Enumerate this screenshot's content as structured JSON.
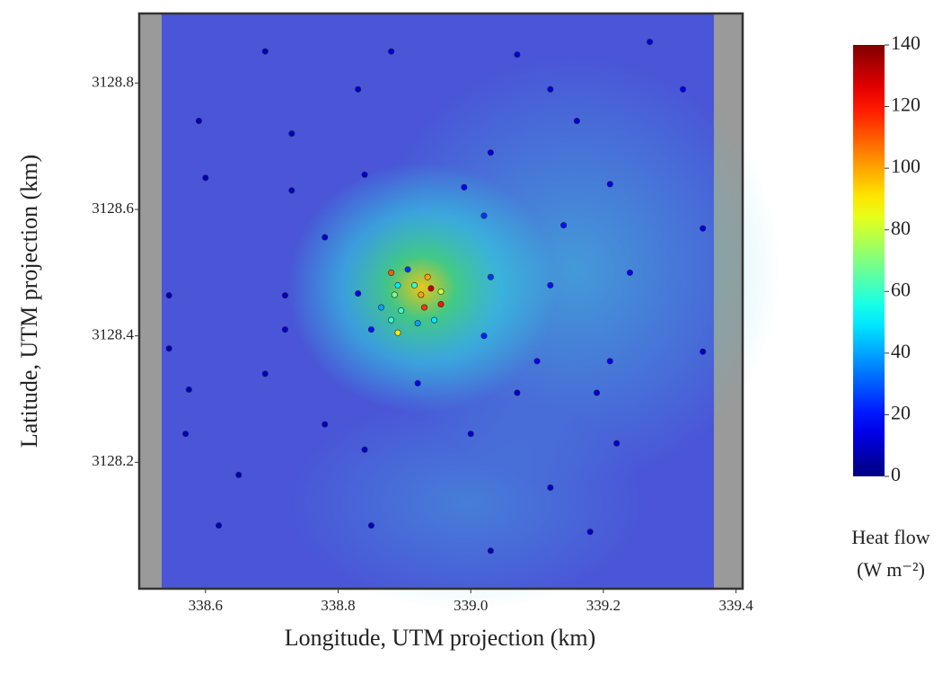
{
  "chart_data": {
    "type": "scatter",
    "x_label": "Longitude, UTM projection (km)",
    "y_label": "Latitude, UTM projection (km)",
    "colorbar_label": [
      "Heat flow",
      "(W m⁻²)"
    ],
    "colormap": "jet",
    "clim": [
      0,
      140
    ],
    "cticks": [
      0,
      20,
      40,
      60,
      80,
      100,
      120,
      140
    ],
    "xlim": [
      338.5,
      339.41
    ],
    "ylim": [
      3128.0,
      3128.91
    ],
    "xticks": [
      {
        "value": 338.6,
        "label": "338.6"
      },
      {
        "value": 338.8,
        "label": "338.8"
      },
      {
        "value": 339.0,
        "label": "339.0"
      },
      {
        "value": 339.2,
        "label": "339.2"
      },
      {
        "value": 339.4,
        "label": "339.4"
      }
    ],
    "yticks": [
      {
        "value": 3128.2,
        "label": "3128.2"
      },
      {
        "value": 3128.4,
        "label": "3128.4"
      },
      {
        "value": 3128.6,
        "label": "3128.6"
      },
      {
        "value": 3128.8,
        "label": "3128.8"
      }
    ],
    "x": [
      338.69,
      338.88,
      339.07,
      339.27,
      338.59,
      338.83,
      339.12,
      339.32,
      338.73,
      339.03,
      339.16,
      338.6,
      338.73,
      338.84,
      338.99,
      339.21,
      339.02,
      339.14,
      339.35,
      338.78,
      338.545,
      338.72,
      338.83,
      339.03,
      339.12,
      339.24,
      338.545,
      338.72,
      338.85,
      339.02,
      339.1,
      339.21,
      339.35,
      338.575,
      338.69,
      338.92,
      339.07,
      339.19,
      338.57,
      338.78,
      339.0,
      339.22,
      338.65,
      338.84,
      339.12,
      338.62,
      338.85,
      339.03,
      339.18,
      338.88,
      338.905,
      338.935,
      338.89,
      338.915,
      338.885,
      338.925,
      338.94,
      338.955,
      338.865,
      338.895,
      338.93,
      338.955,
      338.88,
      338.92,
      338.89,
      338.945
    ],
    "y": [
      3128.85,
      3128.85,
      3128.845,
      3128.865,
      3128.74,
      3128.79,
      3128.79,
      3128.79,
      3128.72,
      3128.69,
      3128.74,
      3128.65,
      3128.63,
      3128.655,
      3128.635,
      3128.64,
      3128.59,
      3128.575,
      3128.57,
      3128.556,
      3128.464,
      3128.464,
      3128.467,
      3128.493,
      3128.48,
      3128.5,
      3128.38,
      3128.41,
      3128.41,
      3128.4,
      3128.36,
      3128.36,
      3128.375,
      3128.315,
      3128.34,
      3128.325,
      3128.31,
      3128.31,
      3128.245,
      3128.26,
      3128.245,
      3128.23,
      3128.18,
      3128.22,
      3128.16,
      3128.1,
      3128.1,
      3128.06,
      3128.09,
      3128.5,
      3128.505,
      3128.493,
      3128.48,
      3128.48,
      3128.465,
      3128.465,
      3128.475,
      3128.47,
      3128.445,
      3128.44,
      3128.445,
      3128.45,
      3128.425,
      3128.42,
      3128.405,
      3128.425
    ],
    "heat_flow": [
      10,
      12,
      15,
      12,
      8,
      10,
      12,
      15,
      10,
      14,
      12,
      8,
      10,
      12,
      18,
      15,
      25,
      20,
      15,
      12,
      8,
      10,
      15,
      25,
      20,
      18,
      8,
      10,
      20,
      22,
      15,
      15,
      12,
      8,
      10,
      15,
      12,
      12,
      8,
      10,
      12,
      12,
      8,
      10,
      12,
      8,
      10,
      10,
      12,
      110,
      25,
      100,
      50,
      60,
      70,
      100,
      130,
      80,
      40,
      60,
      115,
      120,
      60,
      40,
      90,
      50
    ]
  }
}
